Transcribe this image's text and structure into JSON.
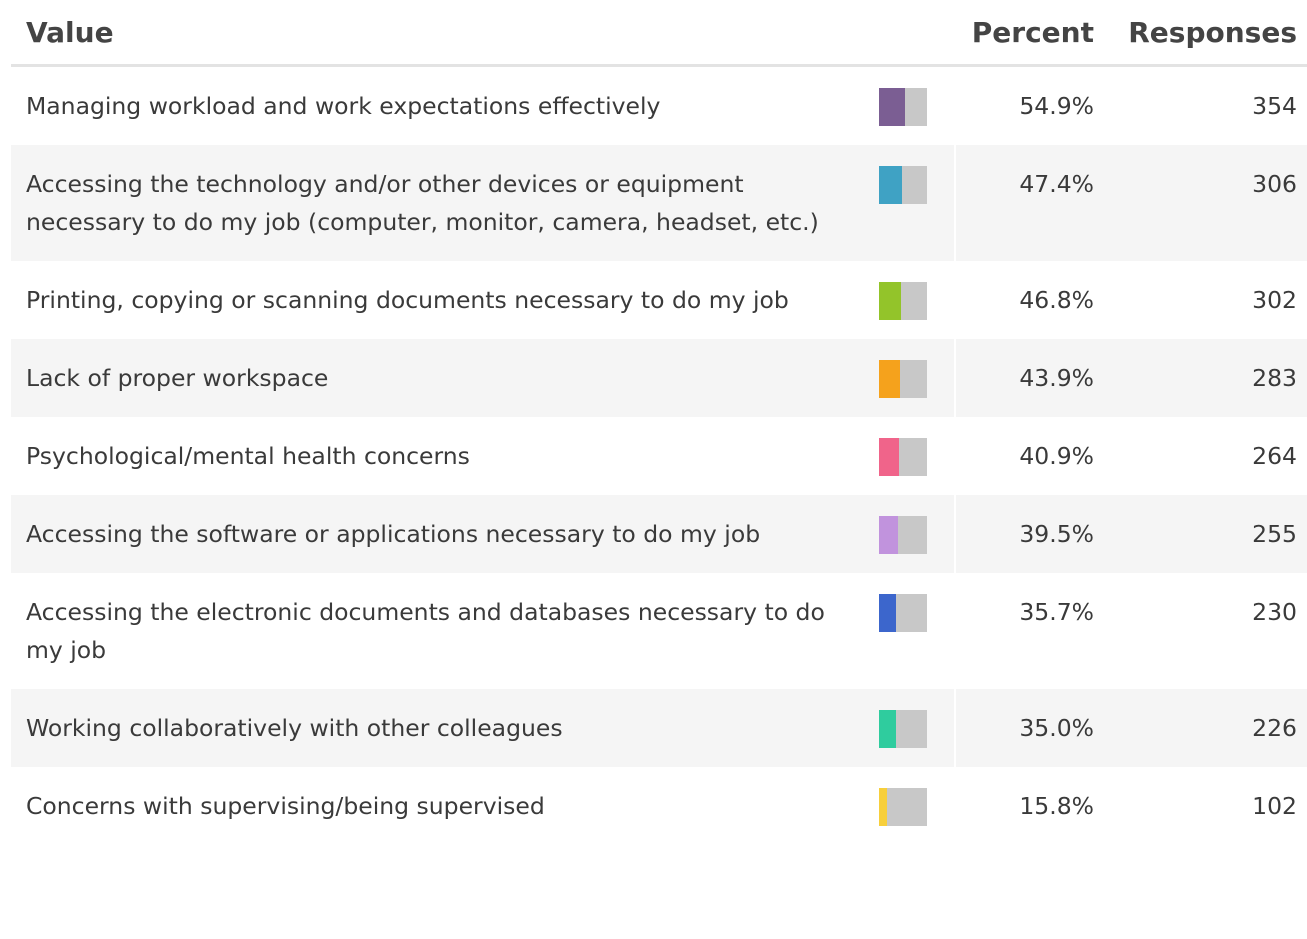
{
  "table": {
    "headers": [
      "Value",
      "Percent",
      "Responses"
    ],
    "rows": [
      {
        "value": "Managing workload and work expectations effectively",
        "percent": 54.9,
        "percent_label": "54.9%",
        "responses": 354,
        "color": "#7b5e93"
      },
      {
        "value": "Accessing the technology and/or other devices or equipment necessary to do my job (computer, monitor, camera, headset, etc.)",
        "percent": 47.4,
        "percent_label": "47.4%",
        "responses": 306,
        "color": "#3fa2c4"
      },
      {
        "value": "Printing, copying or scanning documents necessary to do my job",
        "percent": 46.8,
        "percent_label": "46.8%",
        "responses": 302,
        "color": "#93c42a"
      },
      {
        "value": "Lack of proper workspace",
        "percent": 43.9,
        "percent_label": "43.9%",
        "responses": 283,
        "color": "#f5a21c"
      },
      {
        "value": "Psychological/mental health concerns",
        "percent": 40.9,
        "percent_label": "40.9%",
        "responses": 264,
        "color": "#f0648a"
      },
      {
        "value": "Accessing the software or applications necessary to do my job",
        "percent": 39.5,
        "percent_label": "39.5%",
        "responses": 255,
        "color": "#c193dd"
      },
      {
        "value": "Accessing the electronic documents and databases necessary to do my job",
        "percent": 35.7,
        "percent_label": "35.7%",
        "responses": 230,
        "color": "#3c66cc"
      },
      {
        "value": "Working collaboratively with other colleagues",
        "percent": 35.0,
        "percent_label": "35.0%",
        "responses": 226,
        "color": "#2fcc9e"
      },
      {
        "value": "Concerns with supervising/being supervised",
        "percent": 15.8,
        "percent_label": "15.8%",
        "responses": 102,
        "color": "#f7cf3b"
      }
    ]
  }
}
